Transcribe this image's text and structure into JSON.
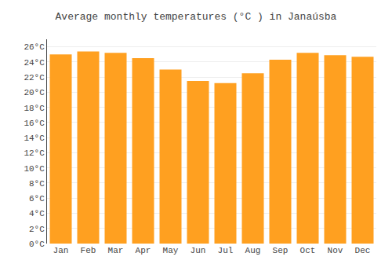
{
  "chart_data": {
    "type": "bar",
    "title": "Average monthly temperatures (°C ) in Janaúsba",
    "categories": [
      "Jan",
      "Feb",
      "Mar",
      "Apr",
      "May",
      "Jun",
      "Jul",
      "Aug",
      "Sep",
      "Oct",
      "Nov",
      "Dec"
    ],
    "values": [
      25.0,
      25.4,
      25.2,
      24.5,
      23.0,
      21.5,
      21.2,
      22.5,
      24.3,
      25.2,
      24.9,
      24.7
    ],
    "color": "#FFA020",
    "ylim": [
      0,
      27
    ],
    "yticks": [
      {
        "value": 0,
        "label": "0°C"
      },
      {
        "value": 2,
        "label": "2°C"
      },
      {
        "value": 4,
        "label": "4°C"
      },
      {
        "value": 6,
        "label": "6°C"
      },
      {
        "value": 8,
        "label": "8°C"
      },
      {
        "value": 10,
        "label": "10°C"
      },
      {
        "value": 12,
        "label": "12°C"
      },
      {
        "value": 14,
        "label": "14°C"
      },
      {
        "value": 16,
        "label": "16°C"
      },
      {
        "value": 18,
        "label": "18°C"
      },
      {
        "value": 20,
        "label": "20°C"
      },
      {
        "value": 22,
        "label": "22°C"
      },
      {
        "value": 24,
        "label": "24°C"
      },
      {
        "value": 26,
        "label": "26°C"
      }
    ],
    "grid": true
  }
}
